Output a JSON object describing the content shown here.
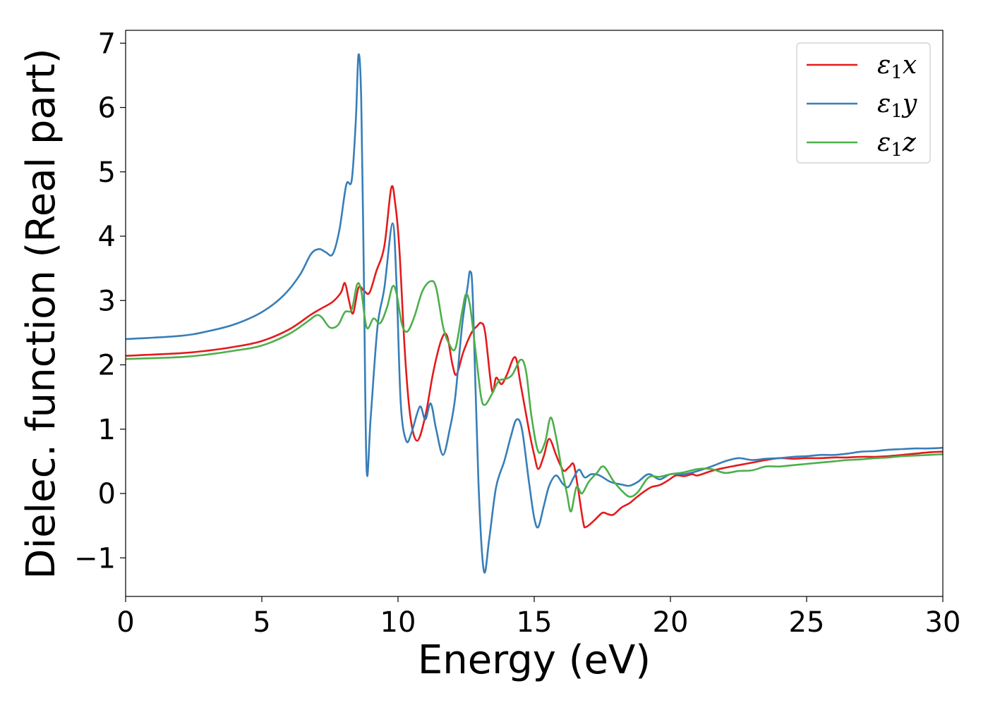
{
  "chart_data": {
    "type": "line",
    "title": "",
    "xlabel": "Energy (eV)",
    "ylabel": "Dielec. function (Real part)",
    "xlim": [
      0,
      30
    ],
    "ylim": [
      -1.6,
      7.2
    ],
    "xticks": [
      0,
      5,
      10,
      15,
      20,
      25,
      30
    ],
    "xtick_labels": [
      "0",
      "5",
      "10",
      "15",
      "20",
      "25",
      "30"
    ],
    "yticks": [
      -1,
      0,
      1,
      2,
      3,
      4,
      5,
      6,
      7
    ],
    "ytick_labels": [
      "−1",
      "0",
      "1",
      "2",
      "3",
      "4",
      "5",
      "6",
      "7"
    ],
    "grid": false,
    "legend_position": "top-right",
    "series": [
      {
        "name": "ε₁x",
        "legend_main": "ε",
        "legend_sub": "1",
        "legend_tail": "x",
        "color": "#e41a1c",
        "points": [
          [
            0,
            2.14
          ],
          [
            2,
            2.18
          ],
          [
            3,
            2.22
          ],
          [
            4,
            2.28
          ],
          [
            5,
            2.37
          ],
          [
            6,
            2.55
          ],
          [
            6.8,
            2.78
          ],
          [
            7.2,
            2.88
          ],
          [
            7.6,
            2.98
          ],
          [
            7.9,
            3.12
          ],
          [
            8.05,
            3.27
          ],
          [
            8.2,
            3.0
          ],
          [
            8.35,
            2.8
          ],
          [
            8.55,
            3.2
          ],
          [
            8.75,
            3.15
          ],
          [
            8.95,
            3.12
          ],
          [
            9.2,
            3.45
          ],
          [
            9.5,
            3.85
          ],
          [
            9.75,
            4.75
          ],
          [
            9.9,
            4.5
          ],
          [
            10.05,
            3.8
          ],
          [
            10.25,
            2.2
          ],
          [
            10.45,
            1.2
          ],
          [
            10.7,
            0.82
          ],
          [
            11.0,
            1.2
          ],
          [
            11.3,
            1.9
          ],
          [
            11.6,
            2.4
          ],
          [
            11.8,
            2.45
          ],
          [
            12.0,
            2.0
          ],
          [
            12.15,
            1.85
          ],
          [
            12.4,
            2.2
          ],
          [
            12.7,
            2.5
          ],
          [
            12.9,
            2.6
          ],
          [
            13.05,
            2.65
          ],
          [
            13.2,
            2.5
          ],
          [
            13.45,
            1.6
          ],
          [
            13.6,
            1.8
          ],
          [
            13.8,
            1.7
          ],
          [
            14.0,
            1.85
          ],
          [
            14.3,
            2.12
          ],
          [
            14.5,
            1.7
          ],
          [
            14.8,
            1.0
          ],
          [
            15.0,
            0.6
          ],
          [
            15.15,
            0.38
          ],
          [
            15.35,
            0.58
          ],
          [
            15.55,
            0.85
          ],
          [
            15.8,
            0.6
          ],
          [
            15.95,
            0.45
          ],
          [
            16.1,
            0.35
          ],
          [
            16.3,
            0.42
          ],
          [
            16.45,
            0.45
          ],
          [
            16.6,
            0.1
          ],
          [
            16.8,
            -0.45
          ],
          [
            16.9,
            -0.52
          ],
          [
            17.2,
            -0.42
          ],
          [
            17.5,
            -0.3
          ],
          [
            17.7,
            -0.32
          ],
          [
            17.9,
            -0.33
          ],
          [
            18.2,
            -0.22
          ],
          [
            18.5,
            -0.15
          ],
          [
            18.7,
            -0.08
          ],
          [
            19.0,
            0.02
          ],
          [
            19.3,
            0.1
          ],
          [
            19.6,
            0.13
          ],
          [
            19.9,
            0.2
          ],
          [
            20.2,
            0.28
          ],
          [
            20.5,
            0.27
          ],
          [
            20.8,
            0.3
          ],
          [
            21.0,
            0.28
          ],
          [
            21.5,
            0.35
          ],
          [
            22.0,
            0.4
          ],
          [
            22.5,
            0.44
          ],
          [
            23.0,
            0.48
          ],
          [
            23.5,
            0.52
          ],
          [
            24.0,
            0.55
          ],
          [
            24.5,
            0.54
          ],
          [
            25.0,
            0.55
          ],
          [
            25.5,
            0.55
          ],
          [
            26.0,
            0.56
          ],
          [
            26.5,
            0.56
          ],
          [
            27.0,
            0.57
          ],
          [
            27.5,
            0.57
          ],
          [
            28.0,
            0.58
          ],
          [
            28.5,
            0.6
          ],
          [
            29.0,
            0.62
          ],
          [
            29.5,
            0.64
          ],
          [
            30.0,
            0.65
          ]
        ]
      },
      {
        "name": "ε₁y",
        "legend_main": "ε",
        "legend_sub": "1",
        "legend_tail": "y",
        "color": "#377eb8",
        "points": [
          [
            0,
            2.4
          ],
          [
            2,
            2.45
          ],
          [
            3,
            2.52
          ],
          [
            4,
            2.63
          ],
          [
            5,
            2.82
          ],
          [
            5.8,
            3.08
          ],
          [
            6.4,
            3.4
          ],
          [
            6.8,
            3.72
          ],
          [
            7.1,
            3.8
          ],
          [
            7.35,
            3.75
          ],
          [
            7.6,
            3.72
          ],
          [
            7.85,
            4.1
          ],
          [
            8.1,
            4.8
          ],
          [
            8.3,
            4.87
          ],
          [
            8.45,
            5.8
          ],
          [
            8.55,
            6.82
          ],
          [
            8.65,
            6.1
          ],
          [
            8.75,
            3.2
          ],
          [
            8.85,
            0.35
          ],
          [
            9.0,
            1.2
          ],
          [
            9.25,
            2.6
          ],
          [
            9.5,
            3.2
          ],
          [
            9.8,
            4.2
          ],
          [
            9.95,
            3.2
          ],
          [
            10.1,
            1.4
          ],
          [
            10.3,
            0.82
          ],
          [
            10.5,
            0.95
          ],
          [
            10.8,
            1.35
          ],
          [
            11.0,
            1.15
          ],
          [
            11.2,
            1.4
          ],
          [
            11.4,
            1.0
          ],
          [
            11.65,
            0.6
          ],
          [
            11.9,
            1.0
          ],
          [
            12.1,
            1.5
          ],
          [
            12.35,
            2.6
          ],
          [
            12.55,
            3.2
          ],
          [
            12.65,
            3.45
          ],
          [
            12.75,
            3.0
          ],
          [
            12.95,
            0.2
          ],
          [
            13.15,
            -1.2
          ],
          [
            13.35,
            -0.7
          ],
          [
            13.6,
            0.1
          ],
          [
            13.9,
            0.5
          ],
          [
            14.15,
            0.9
          ],
          [
            14.35,
            1.15
          ],
          [
            14.55,
            1.0
          ],
          [
            14.8,
            0.2
          ],
          [
            15.0,
            -0.38
          ],
          [
            15.15,
            -0.52
          ],
          [
            15.35,
            -0.2
          ],
          [
            15.55,
            0.12
          ],
          [
            15.8,
            0.28
          ],
          [
            16.05,
            0.15
          ],
          [
            16.25,
            0.1
          ],
          [
            16.45,
            0.25
          ],
          [
            16.65,
            0.37
          ],
          [
            16.85,
            0.25
          ],
          [
            17.1,
            0.3
          ],
          [
            17.4,
            0.28
          ],
          [
            17.8,
            0.18
          ],
          [
            18.2,
            0.14
          ],
          [
            18.5,
            0.12
          ],
          [
            18.8,
            0.18
          ],
          [
            19.2,
            0.3
          ],
          [
            19.6,
            0.22
          ],
          [
            20.0,
            0.3
          ],
          [
            20.5,
            0.3
          ],
          [
            21.0,
            0.35
          ],
          [
            21.5,
            0.42
          ],
          [
            22.0,
            0.5
          ],
          [
            22.5,
            0.55
          ],
          [
            23.0,
            0.52
          ],
          [
            23.5,
            0.54
          ],
          [
            24.0,
            0.55
          ],
          [
            24.5,
            0.57
          ],
          [
            25.0,
            0.58
          ],
          [
            25.5,
            0.6
          ],
          [
            26.0,
            0.6
          ],
          [
            26.5,
            0.62
          ],
          [
            27.0,
            0.65
          ],
          [
            27.5,
            0.66
          ],
          [
            28.0,
            0.68
          ],
          [
            28.5,
            0.69
          ],
          [
            29.0,
            0.7
          ],
          [
            29.5,
            0.7
          ],
          [
            30.0,
            0.71
          ]
        ]
      },
      {
        "name": "ε₁z",
        "legend_main": "ε",
        "legend_sub": "1",
        "legend_tail": "z",
        "color": "#4daf4a",
        "points": [
          [
            0,
            2.09
          ],
          [
            2,
            2.12
          ],
          [
            3,
            2.16
          ],
          [
            4,
            2.22
          ],
          [
            5,
            2.3
          ],
          [
            6,
            2.48
          ],
          [
            6.7,
            2.68
          ],
          [
            7.0,
            2.77
          ],
          [
            7.2,
            2.74
          ],
          [
            7.5,
            2.58
          ],
          [
            7.8,
            2.62
          ],
          [
            8.05,
            2.82
          ],
          [
            8.3,
            2.86
          ],
          [
            8.5,
            3.25
          ],
          [
            8.65,
            3.15
          ],
          [
            8.85,
            2.58
          ],
          [
            9.1,
            2.72
          ],
          [
            9.35,
            2.65
          ],
          [
            9.6,
            2.9
          ],
          [
            9.8,
            3.22
          ],
          [
            9.95,
            3.1
          ],
          [
            10.15,
            2.62
          ],
          [
            10.35,
            2.52
          ],
          [
            10.6,
            2.75
          ],
          [
            10.9,
            3.15
          ],
          [
            11.2,
            3.3
          ],
          [
            11.4,
            3.2
          ],
          [
            11.65,
            2.6
          ],
          [
            11.85,
            2.35
          ],
          [
            12.1,
            2.25
          ],
          [
            12.35,
            2.82
          ],
          [
            12.5,
            3.1
          ],
          [
            12.65,
            2.9
          ],
          [
            12.85,
            2.2
          ],
          [
            13.05,
            1.5
          ],
          [
            13.2,
            1.38
          ],
          [
            13.45,
            1.55
          ],
          [
            13.7,
            1.75
          ],
          [
            13.95,
            1.78
          ],
          [
            14.2,
            1.85
          ],
          [
            14.5,
            2.08
          ],
          [
            14.7,
            1.9
          ],
          [
            14.9,
            1.2
          ],
          [
            15.15,
            0.65
          ],
          [
            15.4,
            0.8
          ],
          [
            15.6,
            1.18
          ],
          [
            15.8,
            0.88
          ],
          [
            16.0,
            0.4
          ],
          [
            16.2,
            0.0
          ],
          [
            16.35,
            -0.28
          ],
          [
            16.55,
            0.1
          ],
          [
            16.75,
            0.0
          ],
          [
            17.0,
            0.18
          ],
          [
            17.3,
            0.32
          ],
          [
            17.55,
            0.42
          ],
          [
            17.9,
            0.2
          ],
          [
            18.2,
            0.05
          ],
          [
            18.5,
            -0.05
          ],
          [
            18.8,
            0.02
          ],
          [
            19.2,
            0.25
          ],
          [
            19.6,
            0.26
          ],
          [
            20.0,
            0.3
          ],
          [
            20.5,
            0.33
          ],
          [
            21.0,
            0.38
          ],
          [
            21.5,
            0.38
          ],
          [
            22.0,
            0.32
          ],
          [
            22.5,
            0.35
          ],
          [
            23.0,
            0.36
          ],
          [
            23.5,
            0.42
          ],
          [
            24.0,
            0.42
          ],
          [
            24.5,
            0.44
          ],
          [
            25.0,
            0.46
          ],
          [
            25.5,
            0.48
          ],
          [
            26.0,
            0.5
          ],
          [
            26.5,
            0.52
          ],
          [
            27.0,
            0.53
          ],
          [
            27.5,
            0.55
          ],
          [
            28.0,
            0.56
          ],
          [
            28.5,
            0.58
          ],
          [
            29.0,
            0.59
          ],
          [
            29.5,
            0.6
          ],
          [
            30.0,
            0.61
          ]
        ]
      }
    ]
  }
}
